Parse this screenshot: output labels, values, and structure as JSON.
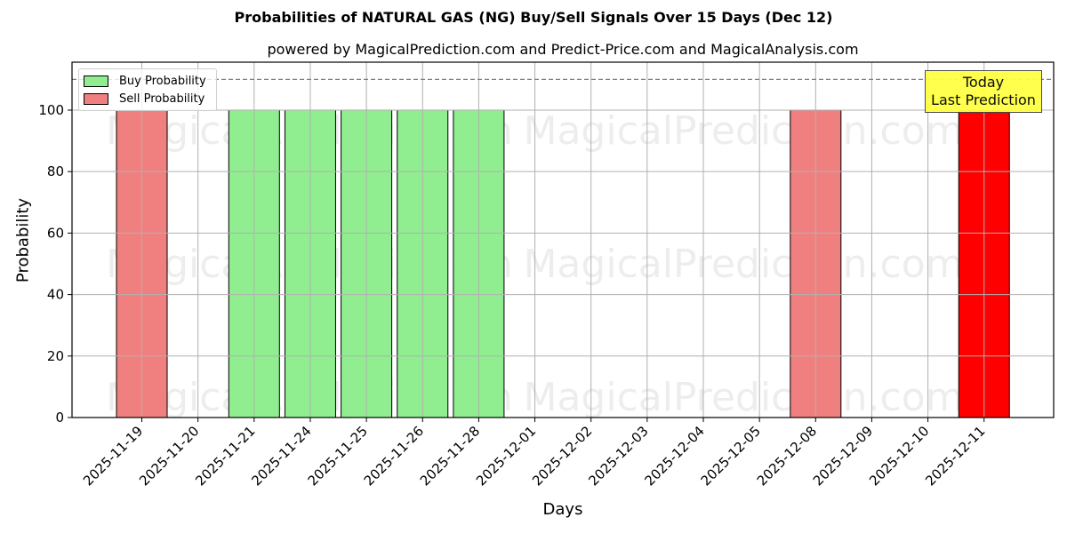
{
  "header": {
    "title": "Probabilities of NATURAL GAS (NG) Buy/Sell Signals Over 15 Days (Dec 12)",
    "subtitle": "powered by MagicalPrediction.com and Predict-Price.com and MagicalAnalysis.com"
  },
  "legend": {
    "buy_label": "Buy Probability",
    "sell_label": "Sell Probability"
  },
  "annotation": {
    "line1": "Today",
    "line2": "Last Prediction"
  },
  "watermarks": [
    "MagicalAnalysis.com",
    "MagicalPrediction.com"
  ],
  "colors": {
    "buy": "#90ee90",
    "sell": "#f08080",
    "today_sell": "#ff0000",
    "annotation_bg": "#ffff44",
    "grid": "#b0b0b0",
    "threshold_line": "#808080"
  },
  "chart_data": {
    "type": "bar",
    "title": "Probabilities of NATURAL GAS (NG) Buy/Sell Signals Over 15 Days (Dec 12)",
    "subtitle": "powered by MagicalPrediction.com and Predict-Price.com and MagicalAnalysis.com",
    "xlabel": "Days",
    "ylabel": "Probability",
    "ylim": [
      0,
      115
    ],
    "yticks": [
      0,
      20,
      40,
      60,
      80,
      100
    ],
    "grid": true,
    "legend_position": "upper left",
    "threshold_line": 110,
    "categories": [
      "2025-11-19",
      "2025-11-20",
      "2025-11-21",
      "2025-11-24",
      "2025-11-25",
      "2025-11-26",
      "2025-11-28",
      "2025-12-01",
      "2025-12-02",
      "2025-12-03",
      "2025-12-04",
      "2025-12-05",
      "2025-12-08",
      "2025-12-09",
      "2025-12-10",
      "2025-12-11"
    ],
    "series": [
      {
        "name": "Buy Probability",
        "values": [
          0,
          0,
          100,
          100,
          100,
          100,
          100,
          0,
          0,
          0,
          0,
          0,
          0,
          0,
          0,
          0
        ]
      },
      {
        "name": "Sell Probability",
        "values": [
          100,
          0,
          0,
          0,
          0,
          0,
          0,
          0,
          0,
          0,
          0,
          0,
          100,
          0,
          0,
          100
        ]
      }
    ],
    "annotations": [
      {
        "text": "Today\nLast Prediction",
        "x": "2025-12-11"
      }
    ]
  }
}
